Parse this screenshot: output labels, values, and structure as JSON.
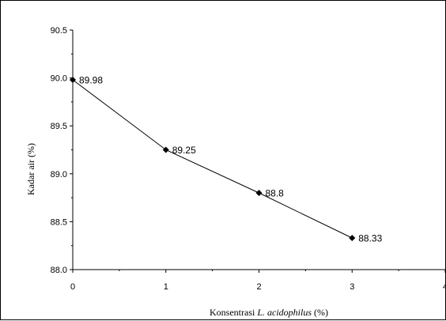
{
  "chart_data": {
    "type": "line",
    "title": "",
    "xlabel_prefix": "Konsentrasi ",
    "xlabel_italic": "L. acidophilus",
    "xlabel_suffix": "  (%)",
    "ylabel": "Kadar air (%)",
    "xlim": [
      0,
      4
    ],
    "ylim": [
      88.0,
      90.5
    ],
    "x_ticks": [
      "0",
      "1",
      "2",
      "3",
      "4"
    ],
    "y_ticks": [
      "88.0",
      "88.5",
      "89.0",
      "89.5",
      "90.0",
      "90.5"
    ],
    "grid": false,
    "legend": "none",
    "series": [
      {
        "x": [
          0,
          1,
          2,
          3
        ],
        "values": [
          89.98,
          89.25,
          88.8,
          88.33
        ],
        "labels": [
          "89.98",
          "89.25",
          "88.8",
          "88.33"
        ]
      }
    ],
    "colors": {
      "line": "#000000",
      "marker": "#000000"
    }
  }
}
